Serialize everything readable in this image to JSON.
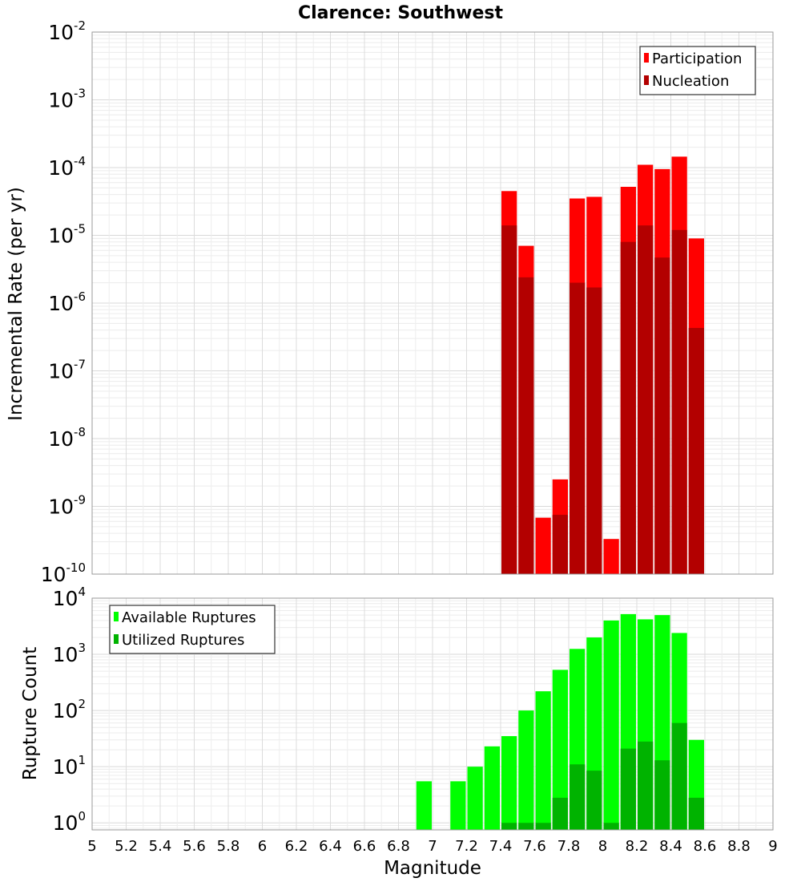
{
  "chart_data": {
    "title": "Clarence: Southwest",
    "xlabel": "Magnitude",
    "x_ticks": [
      "5",
      "5.2",
      "5.4",
      "5.6",
      "5.8",
      "6",
      "6.2",
      "6.4",
      "6.6",
      "6.8",
      "7",
      "7.2",
      "7.4",
      "7.6",
      "7.8",
      "8",
      "8.2",
      "8.4",
      "8.6",
      "8.8",
      "9"
    ],
    "xlim": [
      5,
      9
    ],
    "panels": [
      {
        "type": "bar",
        "ylabel": "Incremental Rate (per yr)",
        "yscale": "log",
        "ylim": [
          1e-10,
          0.01
        ],
        "y_ticks": [
          {
            "base": "10",
            "exp": "-10",
            "value": 1e-10
          },
          {
            "base": "10",
            "exp": "-9",
            "value": 1e-09
          },
          {
            "base": "10",
            "exp": "-8",
            "value": 1e-08
          },
          {
            "base": "10",
            "exp": "-7",
            "value": 1e-07
          },
          {
            "base": "10",
            "exp": "-6",
            "value": 1e-06
          },
          {
            "base": "10",
            "exp": "-5",
            "value": 1e-05
          },
          {
            "base": "10",
            "exp": "-4",
            "value": 0.0001
          },
          {
            "base": "10",
            "exp": "-3",
            "value": 0.001
          },
          {
            "base": "10",
            "exp": "-2",
            "value": 0.01
          }
        ],
        "legend_position": "top-right",
        "series": [
          {
            "name": "Participation",
            "color": "#ff0000",
            "points": [
              {
                "x": 7.45,
                "y": 4.5e-05
              },
              {
                "x": 7.55,
                "y": 7e-06
              },
              {
                "x": 7.65,
                "y": 6.8e-10
              },
              {
                "x": 7.75,
                "y": 2.5e-09
              },
              {
                "x": 7.85,
                "y": 3.5e-05
              },
              {
                "x": 7.95,
                "y": 3.7e-05
              },
              {
                "x": 8.05,
                "y": 3.3e-10
              },
              {
                "x": 8.15,
                "y": 5.2e-05
              },
              {
                "x": 8.25,
                "y": 0.00011
              },
              {
                "x": 8.35,
                "y": 9.5e-05
              },
              {
                "x": 8.45,
                "y": 0.000145
              },
              {
                "x": 8.55,
                "y": 9e-06
              }
            ]
          },
          {
            "name": "Nucleation",
            "color": "#b30000",
            "points": [
              {
                "x": 7.45,
                "y": 1.4e-05
              },
              {
                "x": 7.55,
                "y": 2.4e-06
              },
              {
                "x": 7.75,
                "y": 7.5e-10
              },
              {
                "x": 7.85,
                "y": 2e-06
              },
              {
                "x": 7.95,
                "y": 1.7e-06
              },
              {
                "x": 8.15,
                "y": 8e-06
              },
              {
                "x": 8.25,
                "y": 1.4e-05
              },
              {
                "x": 8.35,
                "y": 4.7e-06
              },
              {
                "x": 8.45,
                "y": 1.2e-05
              },
              {
                "x": 8.55,
                "y": 4.3e-07
              }
            ]
          }
        ]
      },
      {
        "type": "bar",
        "ylabel": "Rupture Count",
        "yscale": "log",
        "ylim": [
          0.75,
          10000
        ],
        "y_ticks": [
          {
            "base": "10",
            "exp": "0",
            "value": 1
          },
          {
            "base": "10",
            "exp": "1",
            "value": 10
          },
          {
            "base": "10",
            "exp": "2",
            "value": 100
          },
          {
            "base": "10",
            "exp": "3",
            "value": 1000
          },
          {
            "base": "10",
            "exp": "4",
            "value": 10000
          }
        ],
        "legend_position": "top-left",
        "series": [
          {
            "name": "Available Ruptures",
            "color": "#00ff00",
            "points": [
              {
                "x": 6.95,
                "y": 5.5
              },
              {
                "x": 7.15,
                "y": 5.5
              },
              {
                "x": 7.25,
                "y": 10
              },
              {
                "x": 7.35,
                "y": 23
              },
              {
                "x": 7.45,
                "y": 35
              },
              {
                "x": 7.55,
                "y": 100
              },
              {
                "x": 7.65,
                "y": 220
              },
              {
                "x": 7.75,
                "y": 530
              },
              {
                "x": 7.85,
                "y": 1250
              },
              {
                "x": 7.95,
                "y": 2000
              },
              {
                "x": 8.05,
                "y": 4000
              },
              {
                "x": 8.15,
                "y": 5200
              },
              {
                "x": 8.25,
                "y": 4200
              },
              {
                "x": 8.35,
                "y": 5000
              },
              {
                "x": 8.45,
                "y": 2400
              },
              {
                "x": 8.55,
                "y": 30
              }
            ]
          },
          {
            "name": "Utilized Ruptures",
            "color": "#00b300",
            "points": [
              {
                "x": 7.45,
                "y": 1
              },
              {
                "x": 7.55,
                "y": 1
              },
              {
                "x": 7.65,
                "y": 1
              },
              {
                "x": 7.75,
                "y": 2.8
              },
              {
                "x": 7.85,
                "y": 11
              },
              {
                "x": 7.95,
                "y": 8.5
              },
              {
                "x": 8.05,
                "y": 1
              },
              {
                "x": 8.15,
                "y": 21
              },
              {
                "x": 8.25,
                "y": 28
              },
              {
                "x": 8.35,
                "y": 13
              },
              {
                "x": 8.45,
                "y": 60
              },
              {
                "x": 8.55,
                "y": 2.8
              }
            ]
          }
        ]
      }
    ]
  }
}
